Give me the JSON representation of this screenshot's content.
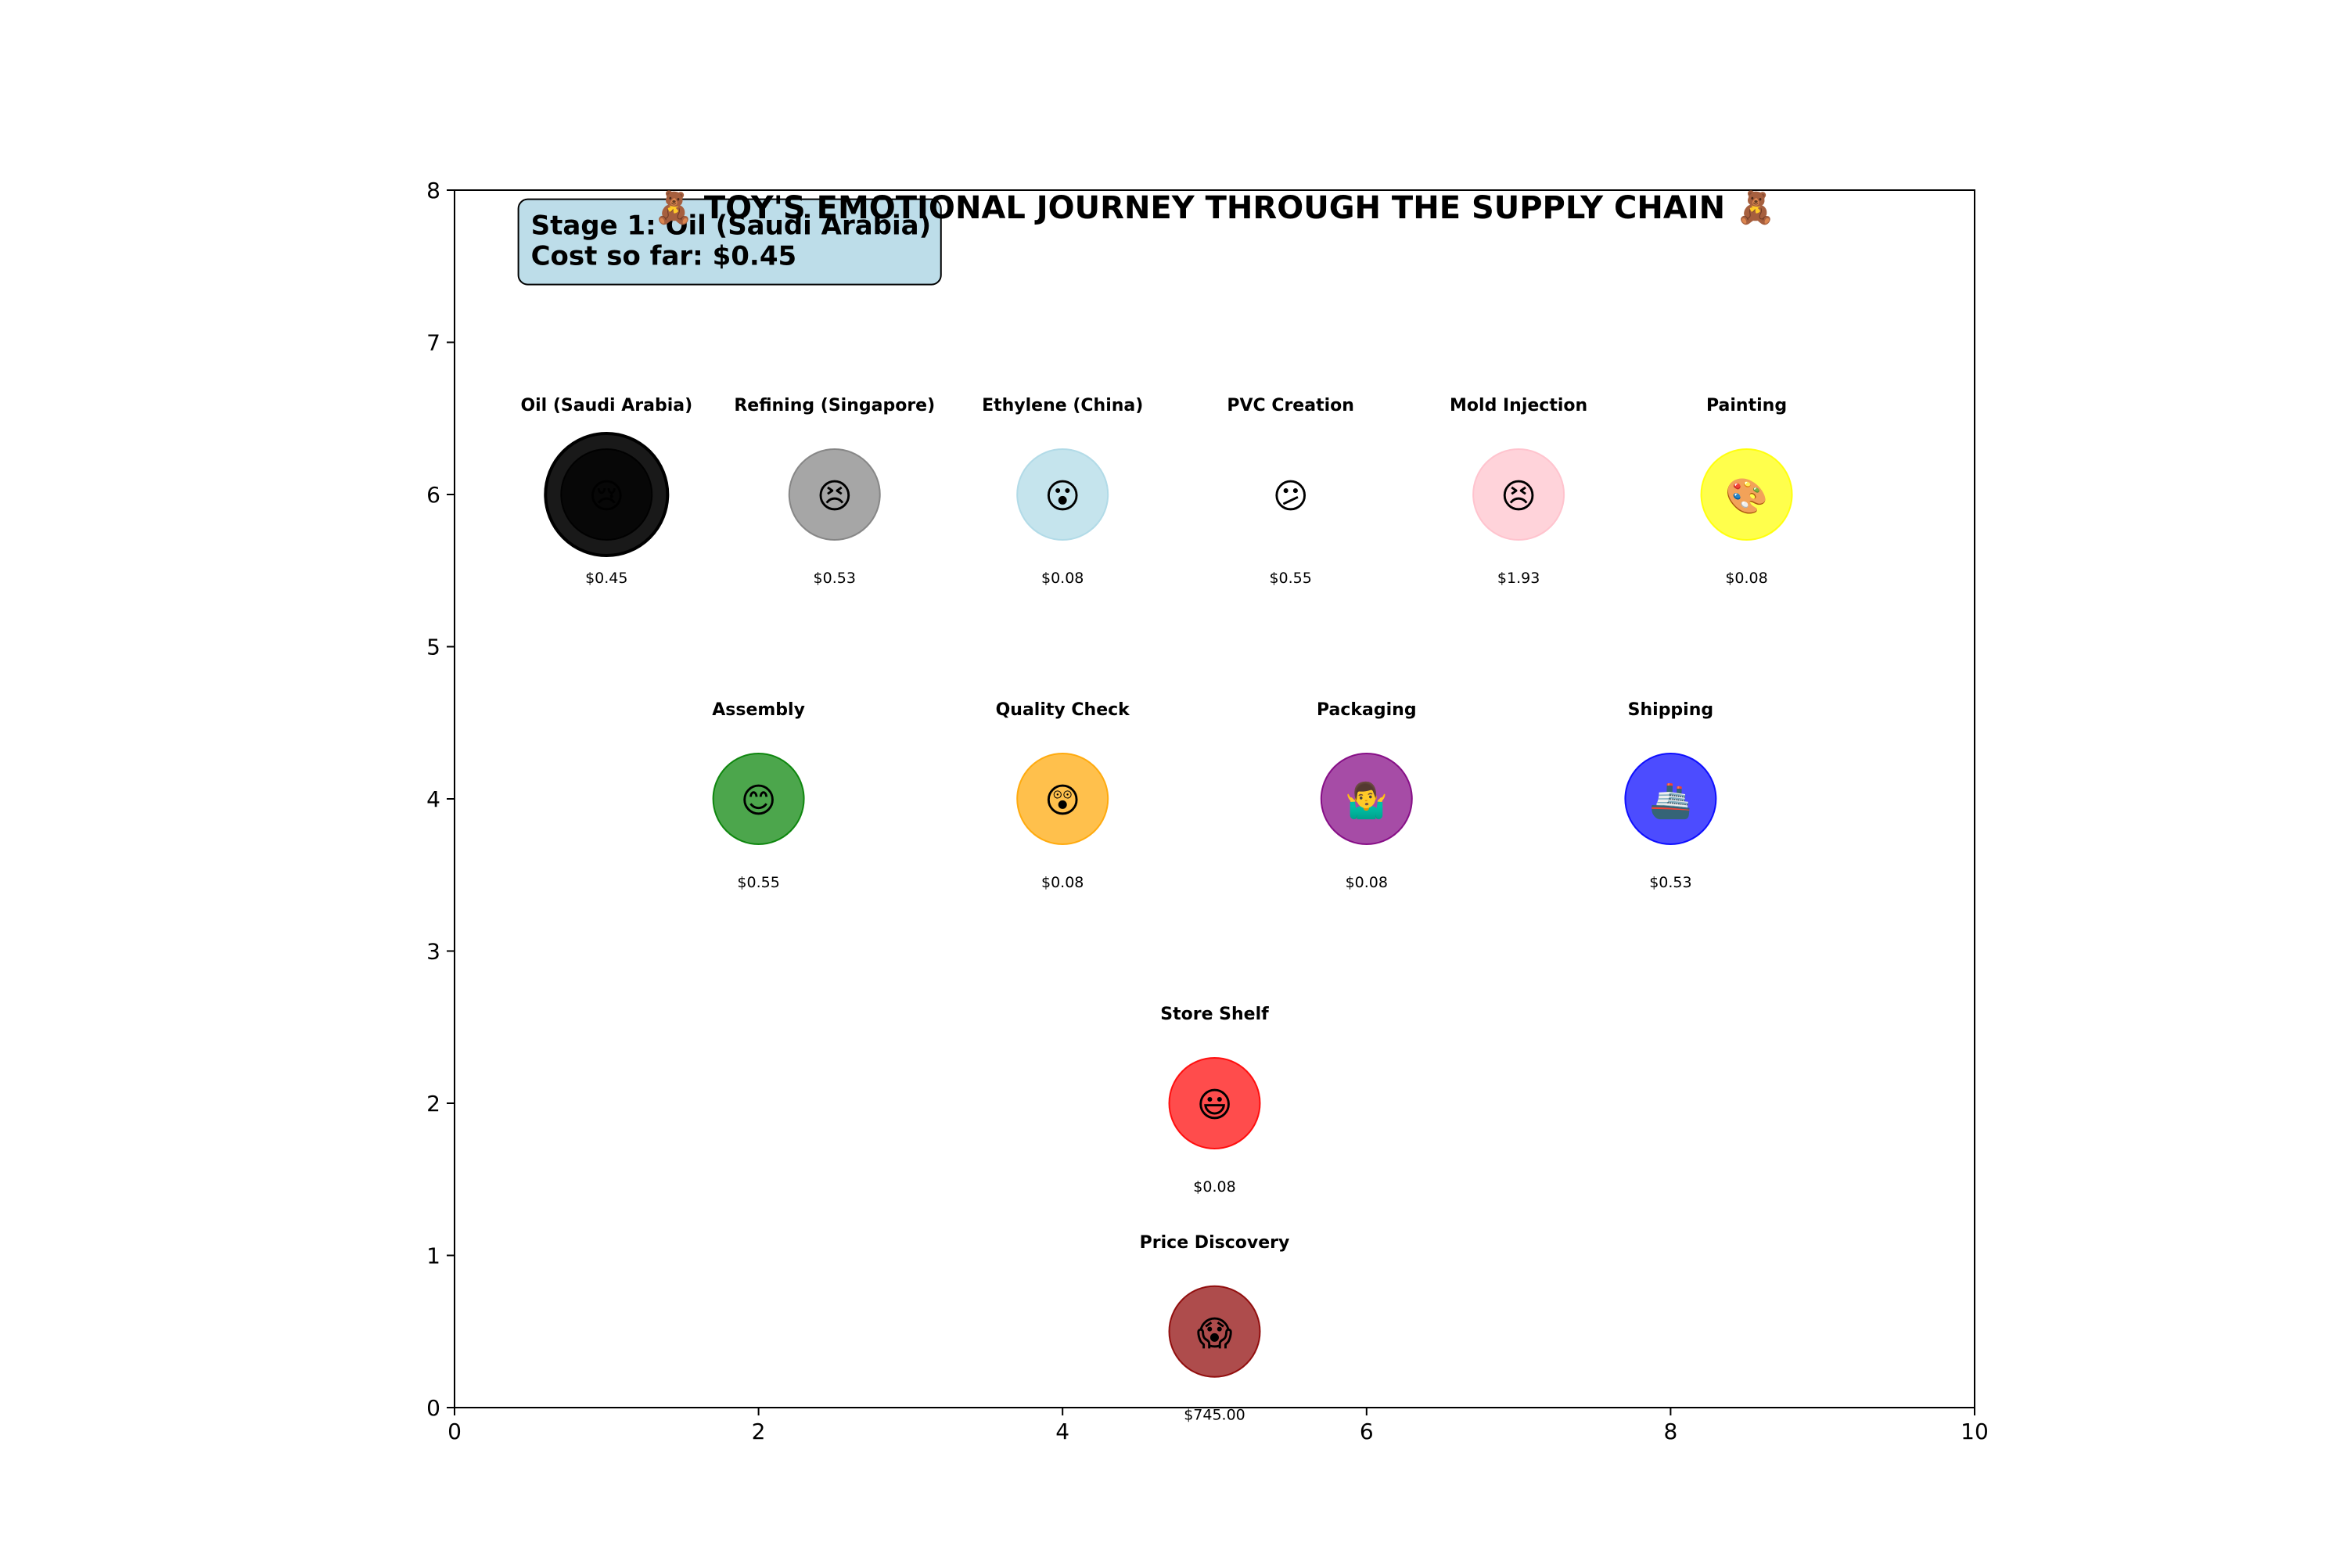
{
  "chart_data": {
    "type": "scatter",
    "title": "🧸 TOY'S EMOTIONAL JOURNEY THROUGH THE SUPPLY CHAIN 🧸",
    "xlabel": "",
    "ylabel": "",
    "xlim": [
      0,
      10
    ],
    "ylim": [
      0,
      8
    ],
    "xticks": [
      "0",
      "2",
      "4",
      "6",
      "8",
      "10"
    ],
    "yticks": [
      "0",
      "1",
      "2",
      "3",
      "4",
      "5",
      "6",
      "7",
      "8"
    ],
    "grid": false,
    "info_box": {
      "line1": "Stage 1: Oil (Saudi Arabia)",
      "line2": "Cost so far: $0.45",
      "color": "#bddde9"
    },
    "points": [
      {
        "label": "Oil (Saudi Arabia)",
        "x": 1.0,
        "y": 6.0,
        "cost": "$0.45",
        "emoji": "😢",
        "color": "#000000",
        "highlight": true
      },
      {
        "label": "Refining (Singapore)",
        "x": 2.5,
        "y": 6.0,
        "cost": "$0.53",
        "emoji": "😣",
        "color": "#808080"
      },
      {
        "label": "Ethylene (China)",
        "x": 4.0,
        "y": 6.0,
        "cost": "$0.08",
        "emoji": "😮",
        "color": "#add8e6"
      },
      {
        "label": "PVC Creation",
        "x": 5.5,
        "y": 6.0,
        "cost": "$0.55",
        "emoji": "😕",
        "color": "#ffffff"
      },
      {
        "label": "Mold Injection",
        "x": 7.0,
        "y": 6.0,
        "cost": "$1.93",
        "emoji": "😣",
        "color": "#ffc0cb"
      },
      {
        "label": "Painting",
        "x": 8.5,
        "y": 6.0,
        "cost": "$0.08",
        "emoji": "🎨",
        "color": "#ffff00"
      },
      {
        "label": "Assembly",
        "x": 2.0,
        "y": 4.0,
        "cost": "$0.55",
        "emoji": "😊",
        "color": "#008000"
      },
      {
        "label": "Quality Check",
        "x": 4.0,
        "y": 4.0,
        "cost": "$0.08",
        "emoji": "😲",
        "color": "#ffa500"
      },
      {
        "label": "Packaging",
        "x": 6.0,
        "y": 4.0,
        "cost": "$0.08",
        "emoji": "🤷‍♂",
        "color": "#800080"
      },
      {
        "label": "Shipping",
        "x": 8.0,
        "y": 4.0,
        "cost": "$0.53",
        "emoji": "🚢",
        "color": "#0000ff"
      },
      {
        "label": "Store Shelf",
        "x": 5.0,
        "y": 2.0,
        "cost": "$0.08",
        "emoji": "😃",
        "color": "#ff0000"
      },
      {
        "label": "Price Discovery",
        "x": 5.0,
        "y": 0.5,
        "cost": "$745.00",
        "emoji": "😱",
        "color": "#8b0000"
      }
    ]
  }
}
